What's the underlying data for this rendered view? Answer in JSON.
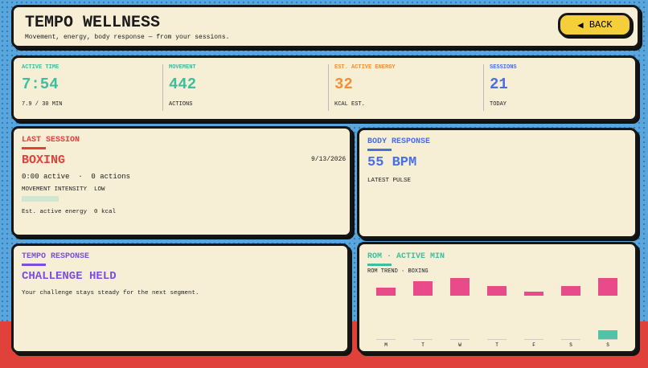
{
  "header": {
    "title": "TEMPO WELLNESS",
    "subtitle": "Movement, energy, body response — from your sessions.",
    "back_button": "BACK"
  },
  "stats": [
    {
      "label": "ACTIVE TIME",
      "value": "7:54",
      "sub": "7.9 / 30 MIN",
      "color": "#3cbf9f"
    },
    {
      "label": "MOVEMENT",
      "value": 442,
      "sub": "ACTIONS",
      "color": "#3cbf9f"
    },
    {
      "label": "EST. ACTIVE ENERGY",
      "value": 32,
      "sub": "KCAL EST.",
      "color": "#f0913a"
    },
    {
      "label": "SESSIONS",
      "value": 21,
      "sub": "TODAY",
      "color": "#4a6fe3"
    }
  ],
  "last_session": {
    "heading": "LAST SESSION",
    "date": "9/13/2026",
    "activity": "BOXING",
    "summary": "0:00 active  ·  0 actions",
    "intensity": "MOVEMENT INTENSITY  LOW",
    "energy": "Est. active energy  0 kcal"
  },
  "body_response": {
    "heading": "BODY RESPONSE",
    "value": "55 BPM",
    "caption": "LATEST PULSE"
  },
  "tempo_response": {
    "heading": "TEMPO RESPONSE",
    "status": "CHALLENGE HELD",
    "message": "Your challenge stays steady for the next segment."
  },
  "rom_chart": {
    "type": "bar",
    "title": "ROM · ACTIVE MIN",
    "subtitle": "ROM TREND · BOXING",
    "categories": [
      "M",
      "T",
      "W",
      "T",
      "F",
      "S",
      "S"
    ],
    "rom": [
      10,
      18,
      22,
      12,
      5,
      12,
      22
    ],
    "rom_color": "#e84a8a",
    "active_min": [
      0,
      0,
      0,
      0,
      0,
      0,
      10
    ],
    "active_color": "#4fc4a6"
  }
}
